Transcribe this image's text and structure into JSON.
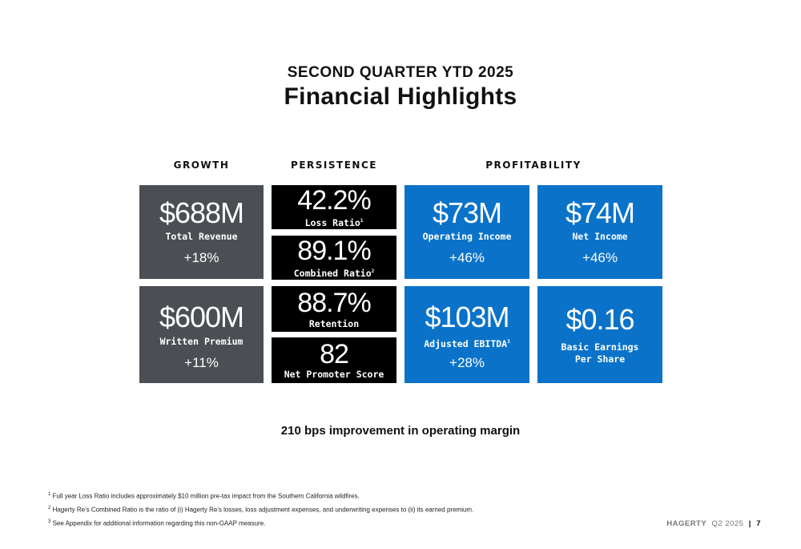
{
  "header": {
    "kicker": "SECOND QUARTER YTD 2025",
    "title": "Financial Highlights"
  },
  "columns": {
    "growth": "GROWTH",
    "persistence": "PERSISTENCE",
    "profitability": "PROFITABILITY"
  },
  "growth": [
    {
      "value": "$688M",
      "label": "Total Revenue",
      "change": "+18%"
    },
    {
      "value": "$600M",
      "label": "Written Premium",
      "change": "+11%"
    }
  ],
  "persistence": [
    {
      "value": "42.2%",
      "label": "Loss Ratio",
      "note": "1"
    },
    {
      "value": "89.1%",
      "label": "Combined Ratio",
      "note": "2"
    },
    {
      "value": "88.7%",
      "label": "Retention"
    },
    {
      "value": "82",
      "label": "Net Promoter Score"
    }
  ],
  "profitability": [
    {
      "value": "$73M",
      "label": "Operating Income",
      "change": "+46%"
    },
    {
      "value": "$74M",
      "label": "Net Income",
      "change": "+46%"
    },
    {
      "value": "$103M",
      "label": "Adjusted EBITDA",
      "note": "3",
      "change": "+28%"
    },
    {
      "value": "$0.16",
      "label_line1": "Basic Earnings",
      "label_line2": "Per Share"
    }
  ],
  "improvement": "210 bps improvement in operating margin",
  "footnotes": [
    {
      "num": "1",
      "text": "Full year Loss Ratio includes approximately $10 million pre-tax impact from the Southern California wildfires."
    },
    {
      "num": "2",
      "text": "Hagerty Re’s Combined Ratio is the ratio of (i) Hagerty Re’s losses, loss adjustment expenses, and underwriting expenses to (ii) its earned premium."
    },
    {
      "num": "3",
      "text": "See Appendix for additional information regarding this non-GAAP measure."
    }
  ],
  "footer": {
    "brand": "HAGERTY",
    "period": "Q2 2025",
    "separator": "|",
    "page": "7"
  },
  "colors": {
    "growth_tile": "#4b4f54",
    "persistence_tile": "#000000",
    "profitability_tile": "#0a73c9"
  }
}
